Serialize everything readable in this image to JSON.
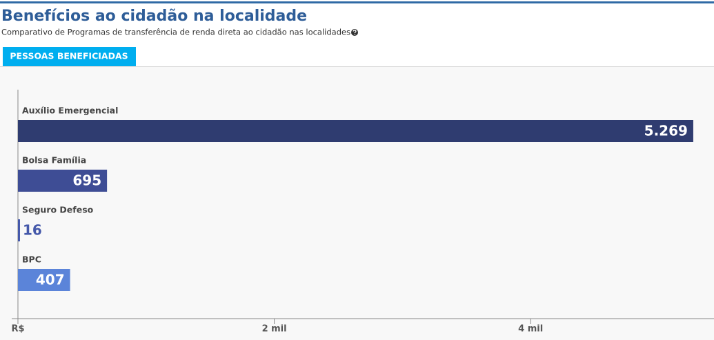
{
  "header": {
    "title": "Benefícios ao cidadão na localidade",
    "subtitle": "Comparativo de Programas de transferência de renda direta ao cidadão nas localidades",
    "tab": "PESSOAS BENEFICIADAS"
  },
  "chart_data": {
    "type": "hbar",
    "categories": [
      "Auxílio Emergencial",
      "Bolsa Família",
      "Seguro Defeso",
      "BPC"
    ],
    "values": [
      5269,
      695,
      16,
      407
    ],
    "value_labels": [
      "5.269",
      "695",
      "16",
      "407"
    ],
    "colors": [
      "#2f3c70",
      "#3e4d95",
      "#4458aa",
      "#5b84d9"
    ],
    "xlim": [
      0,
      5420
    ],
    "xticks": [
      {
        "value": 0,
        "label": "R$"
      },
      {
        "value": 2000,
        "label": "2 mil"
      },
      {
        "value": 4000,
        "label": "4 mil"
      }
    ]
  }
}
